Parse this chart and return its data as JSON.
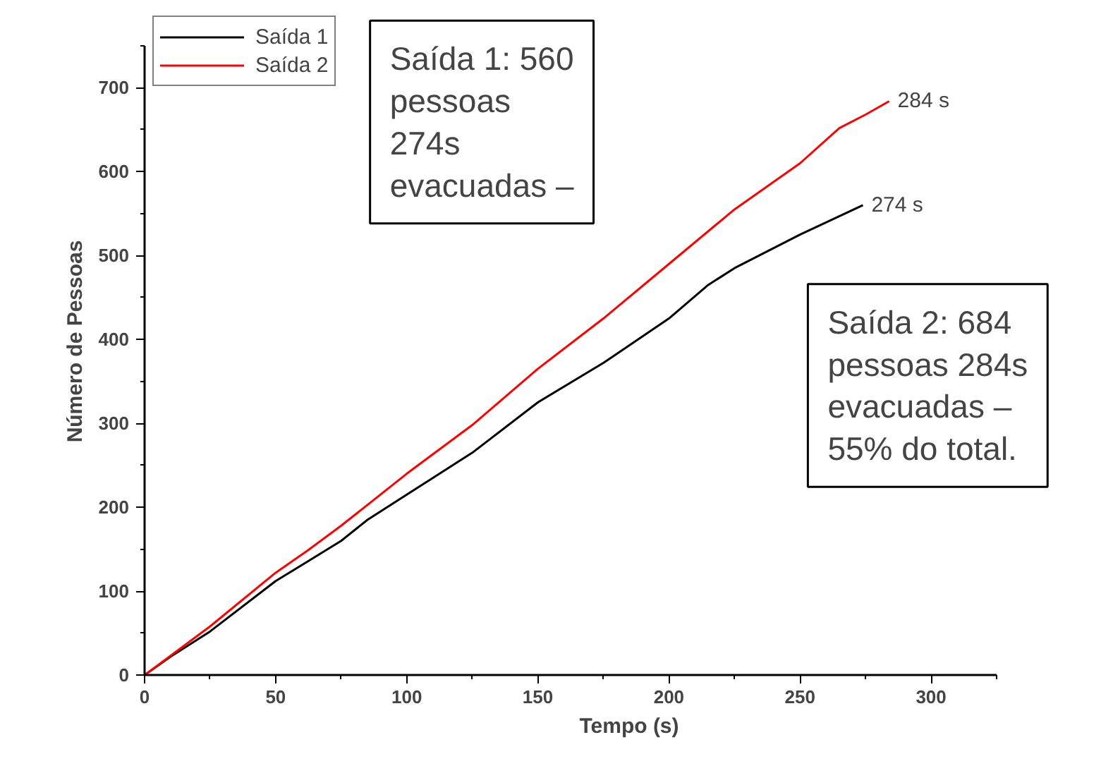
{
  "chart_data": {
    "type": "line",
    "xlabel": "Tempo (s)",
    "ylabel": "Número de Pessoas",
    "xlim": [
      0,
      325
    ],
    "ylim": [
      0,
      750
    ],
    "xticks": [
      0,
      50,
      100,
      150,
      200,
      250,
      300
    ],
    "yticks": [
      0,
      100,
      200,
      300,
      400,
      500,
      600,
      700
    ],
    "grid": false,
    "legend": "top left",
    "line_style": "solid",
    "marker": "none",
    "series": [
      {
        "name": "Saída 1",
        "color": "#000000",
        "x": [
          0,
          10,
          25,
          50,
          62,
          75,
          85,
          100,
          110,
          125,
          150,
          175,
          200,
          215,
          225,
          250,
          274
        ],
        "values": [
          0,
          22,
          52,
          112,
          135,
          160,
          185,
          215,
          235,
          265,
          325,
          372,
          425,
          465,
          485,
          525,
          560
        ]
      },
      {
        "name": "Saída 2",
        "color": "#ff0000",
        "x": [
          0,
          25,
          50,
          62,
          75,
          100,
          125,
          150,
          175,
          200,
          225,
          250,
          265,
          275,
          284
        ],
        "values": [
          0,
          58,
          122,
          148,
          178,
          240,
          298,
          365,
          425,
          490,
          555,
          610,
          652,
          668,
          684
        ]
      }
    ],
    "annotations": [
      {
        "text": "284 s",
        "x": 284,
        "y": 684
      },
      {
        "text": "274 s",
        "x": 274,
        "y": 560
      },
      "Saída 1: 560\npessoas\n274s\nevacuadas –",
      "Saída 2: 684\npessoas 284s\nevacuadas –\n55% do total."
    ]
  }
}
